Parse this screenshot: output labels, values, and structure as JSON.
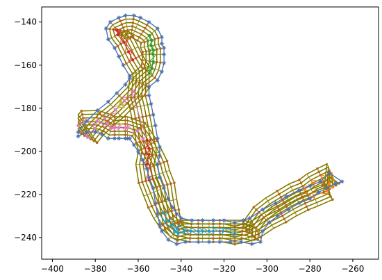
{
  "chart_data": {
    "type": "line",
    "title": "",
    "xlabel": "",
    "ylabel": "",
    "xlim": [
      -405,
      -248
    ],
    "ylim": [
      -250,
      -133
    ],
    "x_ticks": [
      -400,
      -380,
      -360,
      -340,
      -320,
      -300,
      -280,
      -260
    ],
    "y_ticks": [
      -140,
      -160,
      -180,
      -200,
      -220,
      -240
    ],
    "x_tick_labels": [
      "−400",
      "−380",
      "−360",
      "−340",
      "−320",
      "−300",
      "−280",
      "−260"
    ],
    "y_tick_labels": [
      "−140",
      "−160",
      "−180",
      "−200",
      "−220",
      "−240"
    ],
    "grid": false,
    "legend": null,
    "colors": {
      "outer_boundary": "#4c72b0",
      "offset_lines": "#8c8c00",
      "offset_outline": "#7a5a00",
      "markers": "#b5651d",
      "green_region": "#2ca02c",
      "red_region": "#d62728",
      "pink_region": "#e377c2",
      "orange_region": "#ff7f0e",
      "blue_region": "#1f9bd8",
      "olive_marker": "#bcbd22"
    },
    "series": [
      {
        "role": "boundary",
        "x": [
          -388,
          -384,
          -379,
          -374,
          -370,
          -366,
          -364,
          -364,
          -367,
          -369,
          -371,
          -374,
          -375,
          -373,
          -369,
          -366,
          -362,
          -359,
          -355,
          -351,
          -349,
          -349,
          -348,
          -348,
          -348,
          -349,
          -351,
          -355,
          -355,
          -354,
          -353,
          -352,
          -351,
          -350,
          -350,
          -351,
          -350,
          -348,
          -346,
          -344,
          -342,
          -340,
          -335,
          -330,
          -325,
          -320,
          -315,
          -311,
          -308,
          -302,
          -296,
          -291,
          -285,
          -280,
          -275,
          -271,
          -265,
          -268,
          -272,
          -276,
          -280,
          -285,
          -290,
          -295,
          -299,
          -302,
          -303,
          -307,
          -312,
          -317,
          -322,
          -327,
          -332,
          -338,
          -342,
          -346,
          -349,
          -350,
          -351,
          -352,
          -353,
          -355,
          -356,
          -358,
          -360,
          -362,
          -364,
          -365,
          -366,
          -369,
          -371,
          -374,
          -377,
          -380,
          -384,
          -388
        ],
        "y": [
          -191,
          -186,
          -181,
          -177,
          -173,
          -169,
          -166,
          -165,
          -160,
          -156,
          -152,
          -148,
          -143,
          -140,
          -138,
          -137,
          -137,
          -138,
          -140,
          -143,
          -147,
          -150,
          -152,
          -155,
          -159,
          -163,
          -167,
          -170,
          -174,
          -178,
          -183,
          -188,
          -194,
          -198,
          -202,
          -206,
          -212,
          -217,
          -222,
          -226,
          -229,
          -231,
          -232,
          -232,
          -232,
          -232,
          -233,
          -232,
          -231,
          -227,
          -224,
          -221,
          -218,
          -216,
          -214,
          -210,
          -214,
          -215,
          -217,
          -219,
          -222,
          -224,
          -227,
          -230,
          -233,
          -237,
          -242,
          -243,
          -242,
          -242,
          -242,
          -242,
          -242,
          -242,
          -243,
          -241,
          -237,
          -234,
          -229,
          -224,
          -217,
          -212,
          -208,
          -204,
          -200,
          -197,
          -194,
          -194,
          -194,
          -194,
          -194,
          -194,
          -192,
          -191,
          -191,
          -193
        ]
      }
    ],
    "offset_count": 6
  }
}
